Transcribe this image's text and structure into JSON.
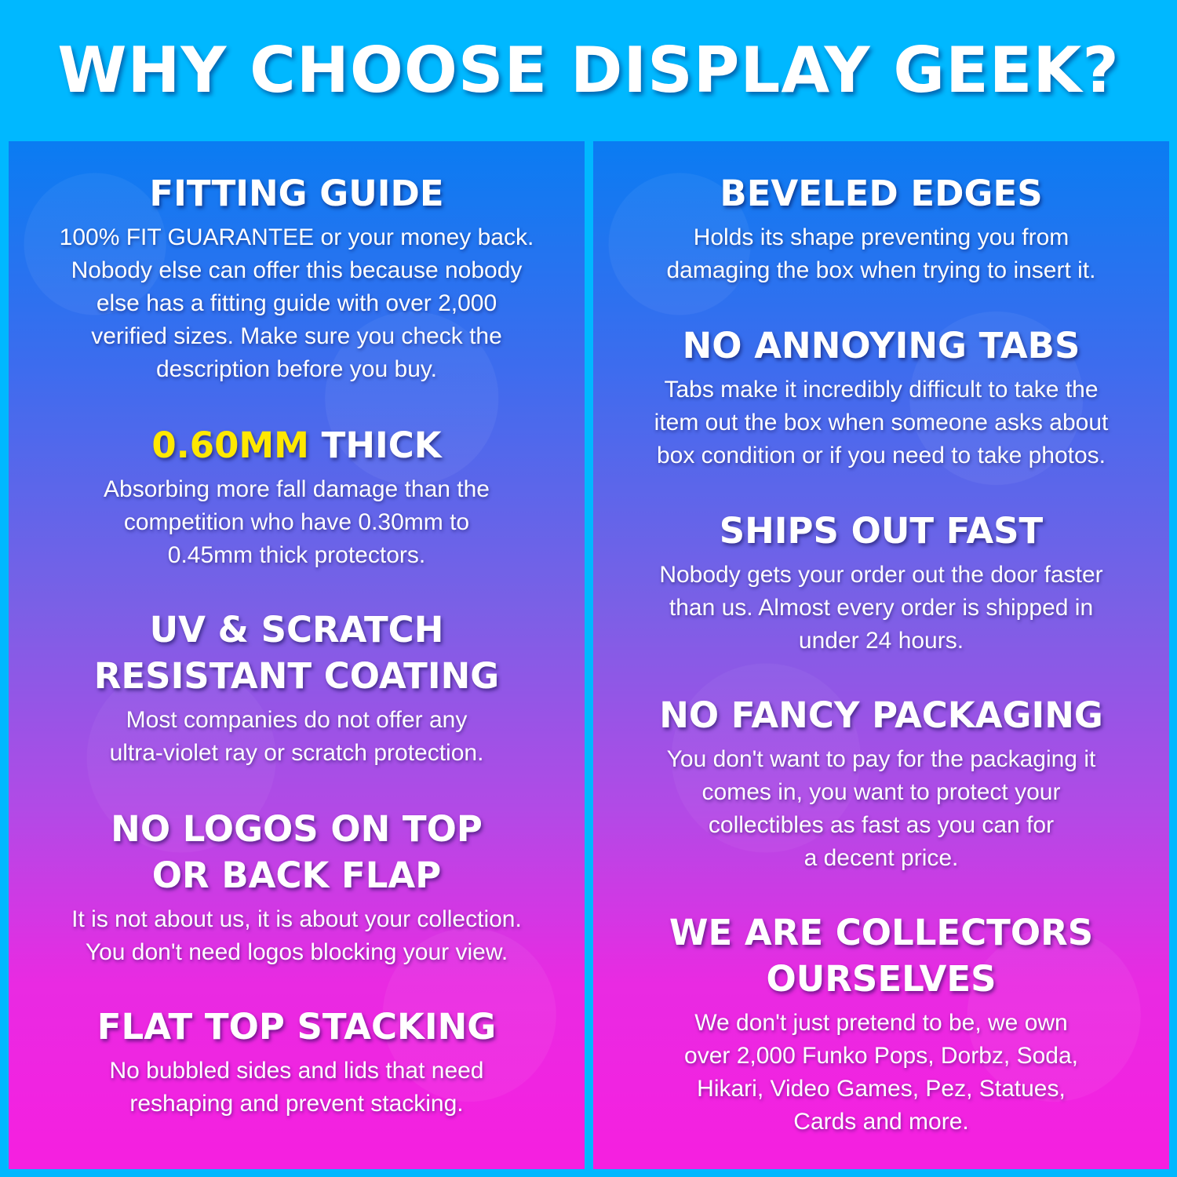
{
  "title": "WHY CHOOSE DISPLAY GEEK?",
  "colors": {
    "background": "#00b8ff",
    "highlight": "#ffe800",
    "gradient_top": "#0a7cf2",
    "gradient_bottom": "#f61fe0"
  },
  "left": [
    {
      "heading": [
        [
          {
            "text": "FITTING GUIDE"
          }
        ]
      ],
      "body": [
        "100% FIT GUARANTEE or your money back.",
        "Nobody else can offer this because nobody",
        "else has a fitting guide with over 2,000",
        "verified sizes. Make sure you check the",
        "description before you buy."
      ]
    },
    {
      "heading": [
        [
          {
            "text": "0.60MM",
            "highlight": true
          },
          {
            "text": " THICK"
          }
        ]
      ],
      "body": [
        "Absorbing more fall damage than the",
        "competition who have 0.30mm to",
        "0.45mm thick protectors."
      ]
    },
    {
      "heading": [
        [
          {
            "text": "UV & SCRATCH"
          }
        ],
        [
          {
            "text": "RESISTANT COATING"
          }
        ]
      ],
      "body": [
        "Most companies do not offer any",
        "ultra-violet ray or scratch protection."
      ]
    },
    {
      "heading": [
        [
          {
            "text": "NO LOGOS ON TOP"
          }
        ],
        [
          {
            "text": "OR BACK FLAP"
          }
        ]
      ],
      "body": [
        "It is not about us, it is about your collection.",
        "You don't need logos blocking your view."
      ]
    },
    {
      "heading": [
        [
          {
            "text": "FLAT TOP STACKING"
          }
        ]
      ],
      "body": [
        "No bubbled sides and lids that need",
        "reshaping and prevent stacking."
      ]
    }
  ],
  "right": [
    {
      "heading": [
        [
          {
            "text": "BEVELED EDGES"
          }
        ]
      ],
      "body": [
        "Holds its shape preventing you from",
        "damaging the box when trying to insert it."
      ]
    },
    {
      "heading": [
        [
          {
            "text": "NO ANNOYING TABS"
          }
        ]
      ],
      "body": [
        "Tabs make it incredibly difficult to take the",
        "item out the box when someone asks about",
        "box condition or if you need to take photos."
      ]
    },
    {
      "heading": [
        [
          {
            "text": "SHIPS OUT FAST"
          }
        ]
      ],
      "body": [
        "Nobody gets your order out the door faster",
        "than us. Almost every order is shipped in",
        "under 24 hours."
      ]
    },
    {
      "heading": [
        [
          {
            "text": "NO FANCY PACKAGING"
          }
        ]
      ],
      "body": [
        "You don't want to pay for the packaging it",
        "comes in, you want to protect your",
        "collectibles as fast as you can for",
        "a decent price."
      ]
    },
    {
      "heading": [
        [
          {
            "text": "WE ARE COLLECTORS"
          }
        ],
        [
          {
            "text": "OURSELVES"
          }
        ]
      ],
      "body": [
        "We don't just pretend to be, we own",
        "over 2,000 Funko Pops, Dorbz, Soda,",
        "Hikari, Video Games, Pez, Statues,",
        "Cards and more."
      ]
    }
  ]
}
